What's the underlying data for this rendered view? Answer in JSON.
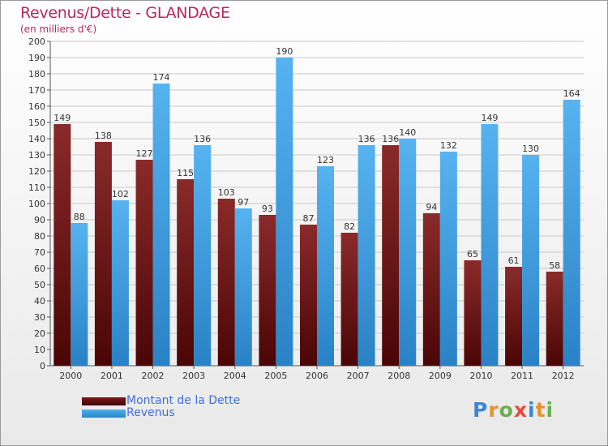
{
  "title": "Revenus/Dette - GLANDAGE",
  "subtitle": "(en milliers d'€)",
  "logo": {
    "text": "Proxiti",
    "letter_colors": [
      "#3a86d6",
      "#e8902a",
      "#6ab04c",
      "#e64a3c",
      "#3a86d6",
      "#e8902a",
      "#6ab04c"
    ]
  },
  "legend": {
    "position": "bottom-left"
  },
  "colors": {
    "debt": "#6b0f0f",
    "revenue": "#3d9fe3",
    "label": "#333333",
    "grid": "#c8c8c8"
  },
  "chart_data": {
    "type": "bar",
    "title": "Revenus/Dette - GLANDAGE",
    "subtitle": "(en milliers d'€)",
    "categories": [
      "2000",
      "2001",
      "2002",
      "2003",
      "2004",
      "2005",
      "2006",
      "2007",
      "2008",
      "2009",
      "2010",
      "2011",
      "2012"
    ],
    "series": [
      {
        "name": "Montant de la Dette",
        "values": [
          149,
          138,
          127,
          115,
          103,
          93,
          87,
          82,
          136,
          94,
          65,
          61,
          58
        ]
      },
      {
        "name": "Revenus",
        "values": [
          88,
          102,
          174,
          136,
          97,
          190,
          123,
          136,
          140,
          132,
          149,
          130,
          164
        ]
      }
    ],
    "ylim": [
      0,
      200
    ],
    "yticks": [
      0,
      10,
      20,
      30,
      40,
      50,
      60,
      70,
      80,
      90,
      100,
      110,
      120,
      130,
      140,
      150,
      160,
      170,
      180,
      190,
      200
    ],
    "grid": true,
    "xlabel": "",
    "ylabel": ""
  }
}
